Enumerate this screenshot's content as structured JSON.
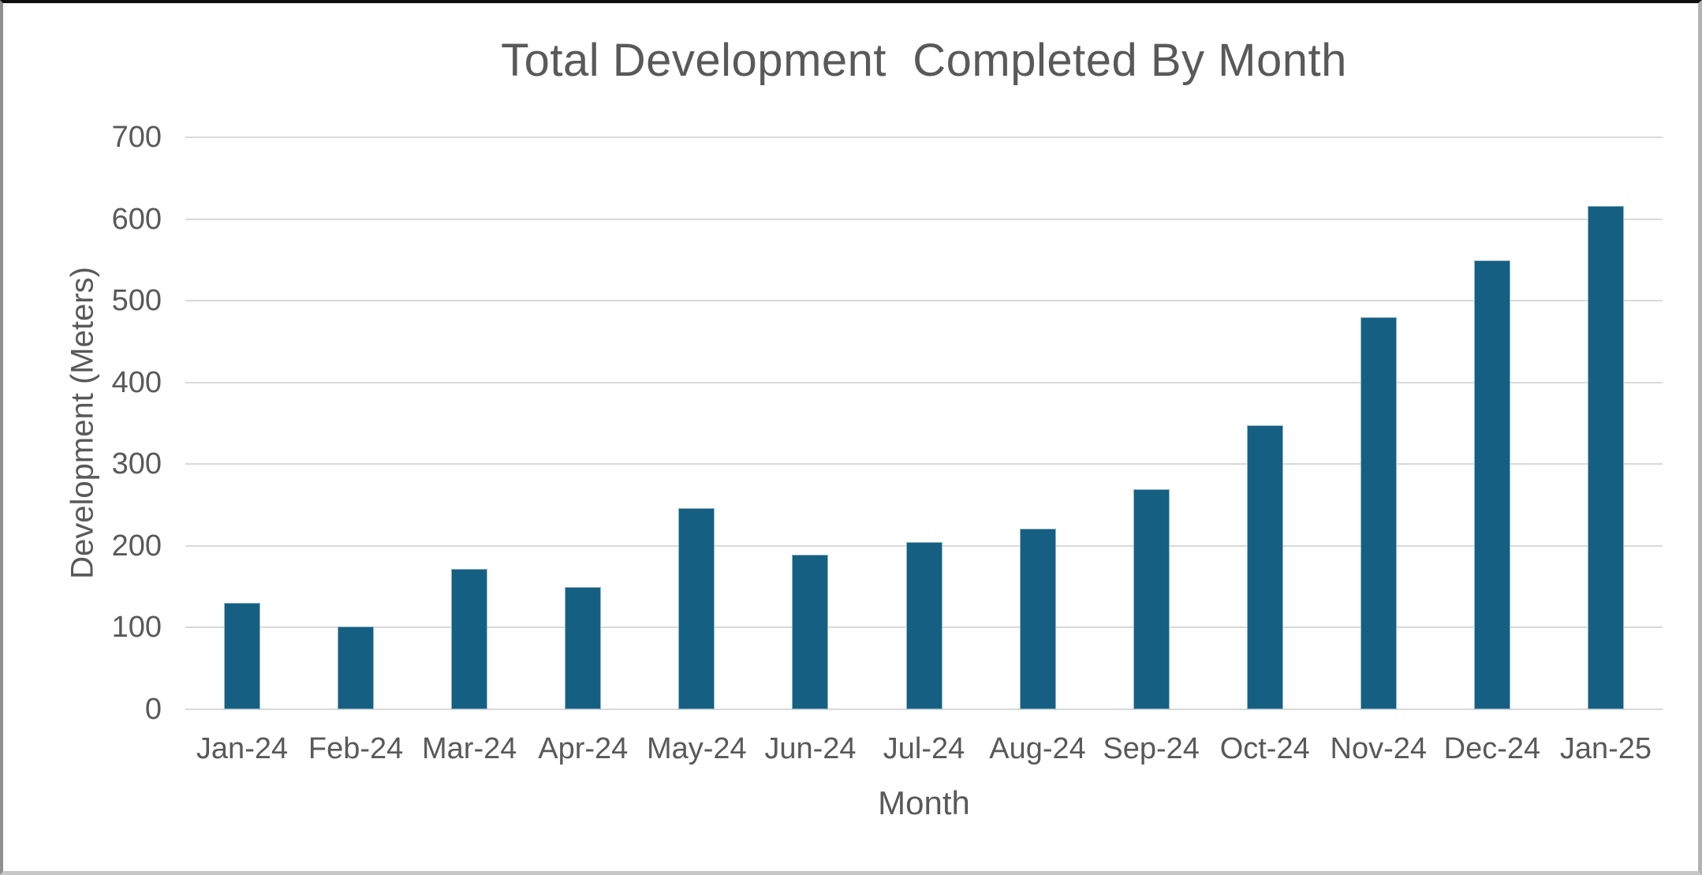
{
  "chart_data": {
    "type": "bar",
    "title": "Total Development  Completed By Month",
    "xlabel": "Month",
    "ylabel": "Development (Meters)",
    "categories": [
      "Jan-24",
      "Feb-24",
      "Mar-24",
      "Apr-24",
      "May-24",
      "Jun-24",
      "Jul-24",
      "Aug-24",
      "Sep-24",
      "Oct-24",
      "Nov-24",
      "Dec-24",
      "Jan-25"
    ],
    "values": [
      130,
      101,
      172,
      150,
      246,
      189,
      205,
      221,
      269,
      348,
      480,
      549,
      616
    ],
    "ylim": [
      0,
      700
    ],
    "ytick_step": 100,
    "grid": true,
    "legend_position": "none",
    "bar_color": "#156082"
  },
  "colors": {
    "bar": "#156082",
    "text": "#595959",
    "gridline": "#D9D9D9",
    "background": "#FFFFFF"
  }
}
